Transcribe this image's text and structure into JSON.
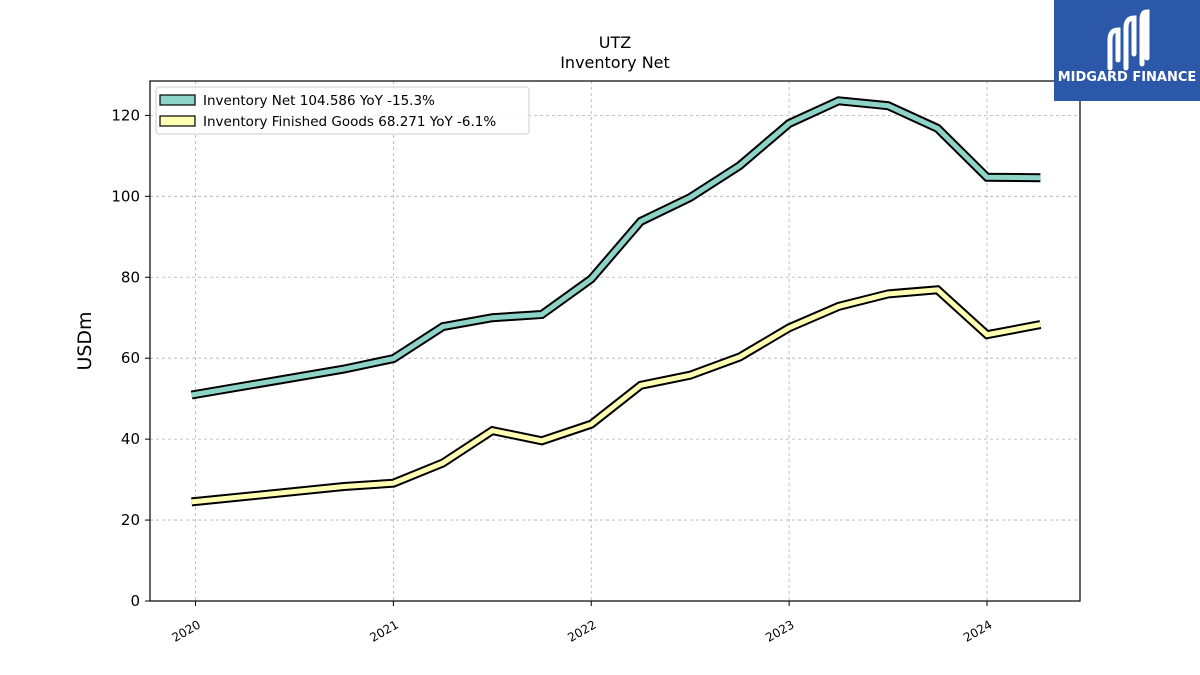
{
  "header": {
    "title": "UTZ",
    "subtitle": "Inventory Net"
  },
  "logo": {
    "text": "MIDGARD FINANCE",
    "icon": "midgard-logo-icon",
    "background": "#2b58a8"
  },
  "chart_data": {
    "type": "line",
    "title": "UTZ",
    "subtitle": "Inventory Net",
    "xlabel": "",
    "ylabel": "USDm",
    "xlim": [
      2019.77,
      2024.47
    ],
    "ylim": [
      0,
      128.5
    ],
    "yticks": [
      0,
      20,
      40,
      60,
      80,
      100,
      120
    ],
    "xticks": [
      {
        "value": 2020,
        "label": "2020"
      },
      {
        "value": 2021,
        "label": "2021"
      },
      {
        "value": 2022,
        "label": "2022"
      },
      {
        "value": 2023,
        "label": "2023"
      },
      {
        "value": 2024,
        "label": "2024"
      }
    ],
    "grid": true,
    "legend_position": "top-left",
    "series": [
      {
        "name": "Inventory Net  104.586 YoY -15.3%",
        "color": "#8dd3c7",
        "x": [
          2019.98,
          2020.75,
          2021.0,
          2021.25,
          2021.5,
          2021.75,
          2022.0,
          2022.25,
          2022.5,
          2022.75,
          2023.0,
          2023.25,
          2023.5,
          2023.75,
          2024.0,
          2024.27
        ],
        "y": [
          50.9,
          57.3,
          59.9,
          67.8,
          70.0,
          70.8,
          79.6,
          93.8,
          99.7,
          107.6,
          118.0,
          123.6,
          122.4,
          116.8,
          104.7,
          104.6
        ]
      },
      {
        "name": "Inventory Finished Goods  68.271 YoY -6.1%",
        "color": "#ffffb3",
        "x": [
          2019.98,
          2020.75,
          2021.0,
          2021.25,
          2021.5,
          2021.75,
          2022.0,
          2022.25,
          2022.5,
          2022.75,
          2023.0,
          2023.25,
          2023.5,
          2023.75,
          2024.0,
          2024.27
        ],
        "y": [
          24.5,
          28.3,
          29.1,
          34.1,
          42.1,
          39.6,
          43.7,
          53.3,
          55.8,
          60.3,
          67.5,
          72.8,
          75.9,
          76.9,
          65.8,
          68.3
        ]
      }
    ]
  }
}
